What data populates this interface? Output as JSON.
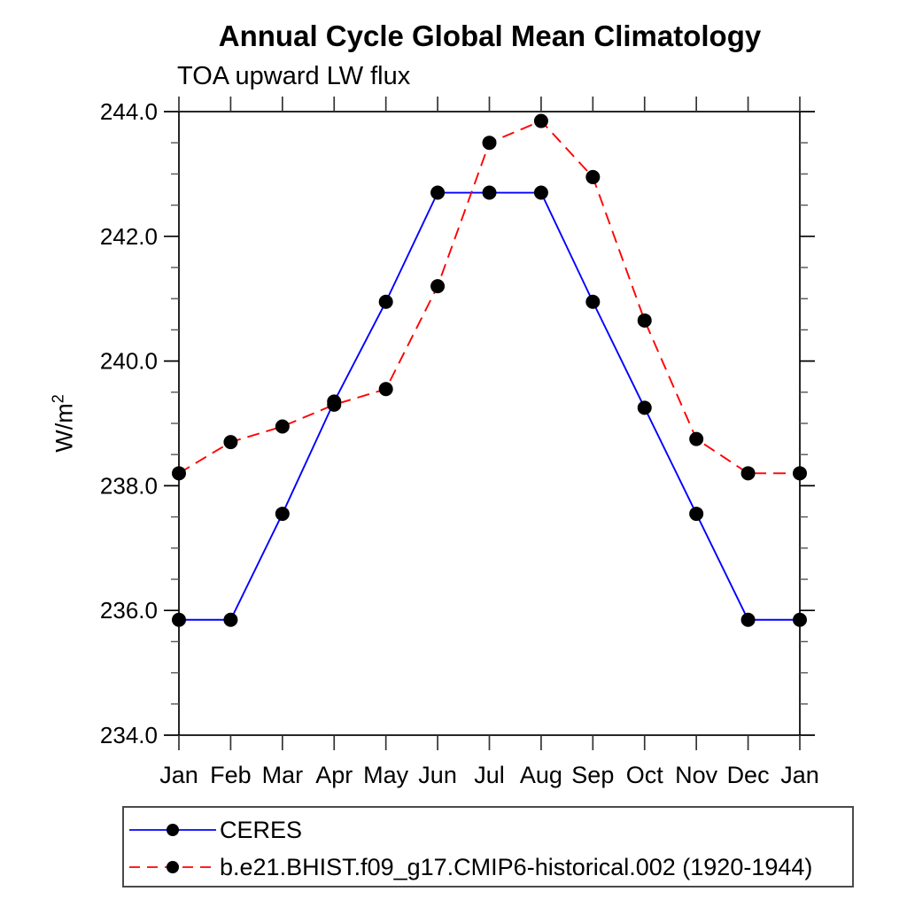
{
  "page": {
    "background": "#ffffff"
  },
  "chart_data": {
    "type": "line",
    "title": "Annual Cycle Global Mean Climatology",
    "subtitle": "TOA upward LW flux",
    "ylabel": "W/m²",
    "ylabel_base": "W/m",
    "ylabel_exponent": "2",
    "xlabel": "",
    "categories": [
      "Jan",
      "Feb",
      "Mar",
      "Apr",
      "May",
      "Jun",
      "Jul",
      "Aug",
      "Sep",
      "Oct",
      "Nov",
      "Dec",
      "Jan"
    ],
    "series": [
      {
        "name": "CERES",
        "color": "#0000ff",
        "line_style": "solid",
        "marker": "filled-circle",
        "values": [
          235.85,
          235.85,
          237.55,
          239.35,
          240.95,
          242.7,
          242.7,
          242.7,
          240.95,
          239.25,
          237.55,
          235.85,
          235.85
        ]
      },
      {
        "name": "b.e21.BHIST.f09_g17.CMIP6-historical.002 (1920-1944)",
        "color": "#ff0000",
        "line_style": "dashed",
        "marker": "filled-circle",
        "values": [
          238.2,
          238.7,
          238.95,
          239.3,
          239.55,
          241.2,
          243.5,
          243.85,
          242.95,
          240.65,
          238.75,
          238.2,
          238.2
        ]
      }
    ],
    "ylim": [
      234.0,
      244.0
    ],
    "y_major_step": 2.0,
    "y_minor_step": 0.5,
    "y_tick_labels": [
      "234.0",
      "236.0",
      "238.0",
      "240.0",
      "242.0",
      "244.0"
    ],
    "grid": false,
    "legend_position": "bottom-left-box",
    "marker_color": "#000000",
    "axis_color": "#000000",
    "text_color": "#000000"
  }
}
